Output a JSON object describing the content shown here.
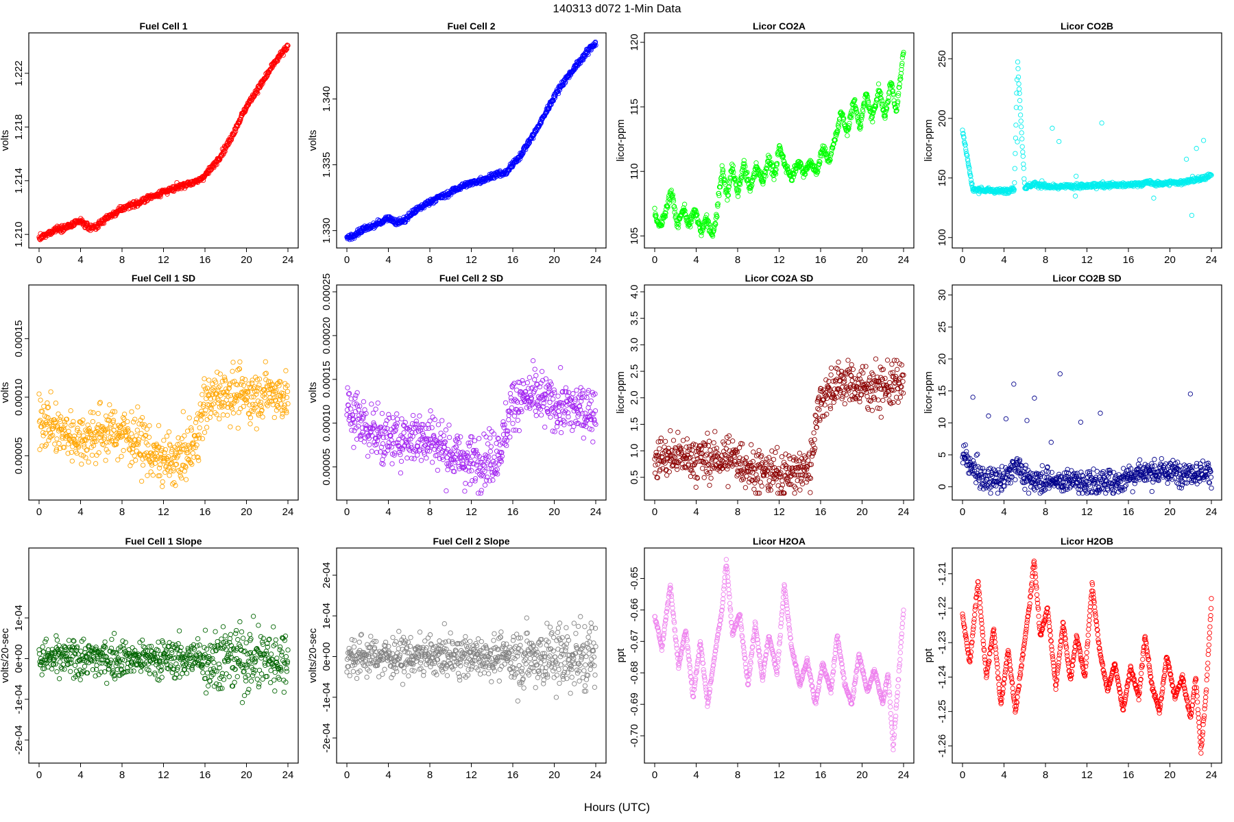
{
  "figure": {
    "title": "140313    d072    1-Min Data",
    "xlabel": "Hours (UTC)"
  },
  "chart_data": [
    {
      "type": "scatter",
      "title": "Fuel Cell 1",
      "xlabel": "",
      "ylabel": "volts",
      "color": "#ff0000",
      "xlim": [
        0,
        24
      ],
      "ylim": [
        1.2095,
        1.2245
      ],
      "xticks": [
        0,
        4,
        8,
        12,
        16,
        20,
        24
      ],
      "xtick_labels": [
        "0",
        "4",
        "8",
        "12",
        "16",
        "20",
        "24"
      ],
      "yticks": [
        1.21,
        1.214,
        1.218,
        1.222
      ],
      "ytick_labels": [
        "1.210",
        "1.214",
        "1.218",
        "1.222"
      ],
      "x": [
        0,
        0.8,
        1.6,
        2.4,
        3.2,
        4,
        4.8,
        5.6,
        6.4,
        7.2,
        8,
        8.8,
        9.6,
        10.4,
        11.2,
        12,
        12.8,
        13.6,
        14.4,
        15.2,
        16,
        16.8,
        17.6,
        18.4,
        19.2,
        20,
        20.8,
        21.6,
        22.4,
        23.2,
        24
      ],
      "y": [
        1.2097,
        1.21,
        1.2104,
        1.2105,
        1.2107,
        1.211,
        1.2105,
        1.2106,
        1.2112,
        1.2115,
        1.2119,
        1.2122,
        1.2123,
        1.2127,
        1.2129,
        1.2132,
        1.2133,
        1.2136,
        1.2138,
        1.2139,
        1.2144,
        1.2151,
        1.216,
        1.217,
        1.2183,
        1.2195,
        1.2205,
        1.2214,
        1.2224,
        1.2233,
        1.224
      ]
    },
    {
      "type": "scatter",
      "title": "Fuel Cell 2",
      "xlabel": "",
      "ylabel": "volts",
      "color": "#0000ff",
      "xlim": [
        0,
        24
      ],
      "ylim": [
        1.3292,
        1.3445
      ],
      "xticks": [
        0,
        4,
        8,
        12,
        16,
        20,
        24
      ],
      "xtick_labels": [
        "0",
        "4",
        "8",
        "12",
        "16",
        "20",
        "24"
      ],
      "yticks": [
        1.33,
        1.335,
        1.34
      ],
      "ytick_labels": [
        "1.330",
        "1.335",
        "1.340"
      ],
      "x": [
        0,
        0.8,
        1.6,
        2.4,
        3.2,
        4,
        4.8,
        5.6,
        6.4,
        7.2,
        8,
        8.8,
        9.6,
        10.4,
        11.2,
        12,
        12.8,
        13.6,
        14.4,
        15.2,
        16,
        16.8,
        17.6,
        18.4,
        19.2,
        20,
        20.8,
        21.6,
        22.4,
        23.2,
        24
      ],
      "y": [
        1.3294,
        1.3297,
        1.3301,
        1.3303,
        1.3306,
        1.331,
        1.3306,
        1.3308,
        1.3314,
        1.3318,
        1.3322,
        1.3325,
        1.3327,
        1.3331,
        1.3334,
        1.3336,
        1.3338,
        1.334,
        1.3343,
        1.3343,
        1.335,
        1.3358,
        1.3368,
        1.3378,
        1.339,
        1.3402,
        1.3412,
        1.342,
        1.3428,
        1.3436,
        1.3443
      ]
    },
    {
      "type": "scatter",
      "title": "Licor CO2A",
      "xlabel": "",
      "ylabel": "licor-ppm",
      "color": "#00ff00",
      "xlim": [
        0,
        24
      ],
      "ylim": [
        104.6,
        120.2
      ],
      "xticks": [
        0,
        4,
        8,
        12,
        16,
        20,
        24
      ],
      "xtick_labels": [
        "0",
        "4",
        "8",
        "12",
        "16",
        "20",
        "24"
      ],
      "yticks": [
        105,
        110,
        115,
        120
      ],
      "ytick_labels": [
        "105",
        "110",
        "115",
        "120"
      ],
      "x": [
        0,
        0.5,
        1,
        1.6,
        2.2,
        2.8,
        3.3,
        3.9,
        4.5,
        5,
        5.6,
        6,
        6.5,
        7,
        7.5,
        8,
        8.6,
        9.2,
        9.8,
        10.4,
        11,
        11.6,
        12,
        12.6,
        13.2,
        13.8,
        14.4,
        15,
        15.6,
        16.2,
        16.8,
        17.4,
        18,
        18.6,
        19.2,
        19.8,
        20.4,
        21,
        21.6,
        22.2,
        22.8,
        23.3,
        24
      ],
      "y": [
        106.8,
        105.6,
        106.8,
        108.5,
        105.8,
        107.2,
        105.8,
        107.0,
        105.2,
        106.4,
        104.9,
        106.8,
        110.2,
        108.0,
        110.5,
        108.2,
        110.6,
        108.5,
        110.5,
        109.2,
        111.0,
        109.5,
        111.9,
        110.5,
        109.5,
        110.8,
        109.8,
        110.8,
        109.9,
        111.8,
        110.8,
        112.5,
        114.6,
        113.0,
        115.5,
        113.5,
        116.0,
        114.0,
        116.5,
        114.2,
        117.0,
        114.5,
        119.5
      ]
    },
    {
      "type": "scatter",
      "title": "Licor CO2B",
      "xlabel": "",
      "ylabel": "licor-ppm",
      "color": "#00eeee",
      "xlim": [
        0,
        24
      ],
      "ylim": [
        97,
        266
      ],
      "xticks": [
        0,
        4,
        8,
        12,
        16,
        20,
        24
      ],
      "xtick_labels": [
        "0",
        "4",
        "8",
        "12",
        "16",
        "20",
        "24"
      ],
      "yticks": [
        100,
        150,
        200,
        250
      ],
      "ytick_labels": [
        "100",
        "150",
        "200",
        "250"
      ],
      "x": [
        0,
        1,
        2,
        3,
        4,
        5,
        5.3,
        6,
        7,
        8,
        9,
        10,
        11,
        12,
        13,
        14,
        15,
        16,
        17,
        18,
        19,
        20,
        21,
        22,
        23,
        24
      ],
      "y": [
        190,
        140,
        140,
        139,
        139,
        141,
        250,
        142,
        145,
        143,
        142,
        143,
        143,
        143,
        144,
        144,
        144,
        144,
        145,
        146,
        145,
        146,
        146,
        148,
        149,
        152
      ]
    },
    {
      "type": "scatter",
      "title": "Fuel Cell 1 SD",
      "xlabel": "",
      "ylabel": "volts",
      "color": "#ffa500",
      "xlim": [
        0,
        24
      ],
      "ylim": [
        1.8e-05,
        0.00019
      ],
      "xticks": [
        0,
        4,
        8,
        12,
        16,
        20,
        24
      ],
      "xtick_labels": [
        "0",
        "4",
        "8",
        "12",
        "16",
        "20",
        "24"
      ],
      "yticks": [
        5e-05,
        0.0001,
        0.00015
      ],
      "ytick_labels": [
        "0.00005",
        "0.00010",
        "0.00015"
      ],
      "x": [
        0,
        2,
        4,
        6,
        8,
        10,
        11,
        12,
        13,
        14,
        15,
        16,
        18,
        20,
        22,
        24
      ],
      "y": [
        8.5e-05,
        7e-05,
        6.5e-05,
        7e-05,
        7e-05,
        6e-05,
        5e-05,
        4.5e-05,
        4.5e-05,
        5e-05,
        6e-05,
        9.5e-05,
        0.000105,
        0.0001,
        0.000105,
        0.0001
      ]
    },
    {
      "type": "scatter",
      "title": "Fuel Cell 2 SD",
      "xlabel": "",
      "ylabel": "volts",
      "color": "#a020f0",
      "xlim": [
        0,
        24
      ],
      "ylim": [
        2e-05,
        0.00025
      ],
      "xticks": [
        0,
        4,
        8,
        12,
        16,
        20,
        24
      ],
      "xtick_labels": [
        "0",
        "4",
        "8",
        "12",
        "16",
        "20",
        "24"
      ],
      "yticks": [
        5e-05,
        0.0001,
        0.00015,
        0.0002,
        0.00025
      ],
      "ytick_labels": [
        "0.00005",
        "0.00010",
        "0.00015",
        "0.00020",
        "0.00025"
      ],
      "x": [
        0,
        2,
        4,
        6,
        8,
        10,
        11,
        12,
        13,
        14,
        15,
        16,
        18,
        20,
        22,
        24
      ],
      "y": [
        0.000115,
        9.5e-05,
        8e-05,
        8.5e-05,
        8.5e-05,
        6.5e-05,
        6e-05,
        5.5e-05,
        6e-05,
        6e-05,
        7.5e-05,
        0.000125,
        0.00013,
        0.00012,
        0.000115,
        0.000115
      ]
    },
    {
      "type": "scatter",
      "title": "Licor CO2A SD",
      "xlabel": "",
      "ylabel": "licor-ppm",
      "color": "#8b0000",
      "xlim": [
        0,
        24
      ],
      "ylim": [
        0.2,
        4.0
      ],
      "xticks": [
        0,
        4,
        8,
        12,
        16,
        20,
        24
      ],
      "xtick_labels": [
        "0",
        "4",
        "8",
        "12",
        "16",
        "20",
        "24"
      ],
      "yticks": [
        0.5,
        1.0,
        1.5,
        2.0,
        2.5,
        3.0,
        3.5,
        4.0
      ],
      "ytick_labels": [
        "0.5",
        "1.0",
        "1.5",
        "2.0",
        "2.5",
        "3.0",
        "3.5",
        "4.0"
      ],
      "x": [
        0,
        2,
        4,
        6,
        8,
        9,
        10,
        12,
        14,
        15,
        15.5,
        16,
        18,
        20,
        22,
        24
      ],
      "y": [
        0.85,
        0.9,
        0.85,
        0.85,
        0.85,
        0.7,
        0.6,
        0.55,
        0.6,
        0.7,
        1.5,
        2.0,
        2.3,
        2.2,
        2.2,
        2.3
      ]
    },
    {
      "type": "scatter",
      "title": "Licor CO2B SD",
      "xlabel": "",
      "ylabel": "licor-ppm",
      "color": "#00008b",
      "xlim": [
        0,
        24
      ],
      "ylim": [
        -1,
        30.5
      ],
      "xticks": [
        0,
        4,
        8,
        12,
        16,
        20,
        24
      ],
      "xtick_labels": [
        "0",
        "4",
        "8",
        "12",
        "16",
        "20",
        "24"
      ],
      "yticks": [
        0,
        5,
        10,
        15,
        20,
        25,
        30
      ],
      "ytick_labels": [
        "0",
        "5",
        "10",
        "15",
        "20",
        "25",
        "30"
      ],
      "x": [
        0,
        2,
        4,
        5.3,
        6,
        8,
        10,
        12,
        14,
        15.5,
        16,
        18,
        20,
        22,
        24
      ],
      "y": [
        5,
        1,
        1,
        4,
        1,
        1,
        0.8,
        0.7,
        0.8,
        1,
        2,
        2.2,
        2.3,
        2.3,
        2.3
      ]
    },
    {
      "type": "scatter",
      "title": "Fuel Cell 1 Slope",
      "xlabel": "",
      "ylabel": "volts/20-sec",
      "color": "#006400",
      "xlim": [
        0,
        24
      ],
      "ylim": [
        -0.00024,
        0.000255
      ],
      "xticks": [
        0,
        4,
        8,
        12,
        16,
        20,
        24
      ],
      "xtick_labels": [
        "0",
        "4",
        "8",
        "12",
        "16",
        "20",
        "24"
      ],
      "yticks": [
        -0.0002,
        -0.0001,
        0,
        0.0001
      ],
      "ytick_labels": [
        "-2e-04",
        "-1e-04",
        "0e+00",
        "1e-04"
      ],
      "x": [
        0,
        4,
        8,
        12,
        16,
        20,
        24
      ],
      "y": [
        0,
        0,
        0,
        0,
        0,
        0,
        0
      ]
    },
    {
      "type": "scatter",
      "title": "Fuel Cell 2 Slope",
      "xlabel": "",
      "ylabel": "volts/20-sec",
      "color": "#808080",
      "xlim": [
        0,
        24
      ],
      "ylim": [
        -0.000245,
        0.00025
      ],
      "xticks": [
        0,
        4,
        8,
        12,
        16,
        20,
        24
      ],
      "xtick_labels": [
        "0",
        "4",
        "8",
        "12",
        "16",
        "20",
        "24"
      ],
      "yticks": [
        -0.0002,
        -0.0001,
        0,
        0.0001,
        0.0002
      ],
      "ytick_labels": [
        "-2e-04",
        "-1e-04",
        "0e+00",
        "1e-04",
        "2e-04"
      ],
      "x": [
        0,
        4,
        8,
        12,
        16,
        20,
        24
      ],
      "y": [
        0,
        0,
        0,
        0,
        0,
        0,
        0
      ]
    },
    {
      "type": "scatter",
      "title": "Licor H2OA",
      "xlabel": "",
      "ylabel": "ppt",
      "color": "#ee82ee",
      "xlim": [
        0,
        24
      ],
      "ylim": [
        -0.7065,
        -0.6425
      ],
      "xticks": [
        0,
        4,
        8,
        12,
        16,
        20,
        24
      ],
      "xtick_labels": [
        "0",
        "4",
        "8",
        "12",
        "16",
        "20",
        "24"
      ],
      "yticks": [
        -0.7,
        -0.69,
        -0.68,
        -0.67,
        -0.66,
        -0.65
      ],
      "ytick_labels": [
        "-0.70",
        "-0.69",
        "-0.68",
        "-0.67",
        "-0.66",
        "-0.65"
      ],
      "x": [
        0,
        0.7,
        1.5,
        2.3,
        3,
        3.7,
        4.4,
        5.1,
        5.8,
        6.5,
        6.9,
        7.5,
        8.2,
        9,
        9.7,
        10.4,
        11,
        11.8,
        12.5,
        13.2,
        14,
        14.7,
        15.5,
        16.2,
        17,
        17.6,
        18.3,
        19,
        19.7,
        20.5,
        21.2,
        22,
        22.5,
        23,
        23.5,
        24
      ],
      "y": [
        -0.662,
        -0.672,
        -0.652,
        -0.678,
        -0.666,
        -0.688,
        -0.67,
        -0.69,
        -0.674,
        -0.66,
        -0.644,
        -0.668,
        -0.661,
        -0.684,
        -0.664,
        -0.682,
        -0.668,
        -0.68,
        -0.652,
        -0.672,
        -0.684,
        -0.676,
        -0.69,
        -0.677,
        -0.686,
        -0.668,
        -0.683,
        -0.69,
        -0.674,
        -0.686,
        -0.679,
        -0.69,
        -0.68,
        -0.704,
        -0.682,
        -0.66
      ]
    },
    {
      "type": "scatter",
      "title": "Licor H2OB",
      "xlabel": "",
      "ylabel": "ppt",
      "color": "#ff0000",
      "xlim": [
        0,
        24
      ],
      "ylim": [
        -1.263,
        -1.2045
      ],
      "xticks": [
        0,
        4,
        8,
        12,
        16,
        20,
        24
      ],
      "xtick_labels": [
        "0",
        "4",
        "8",
        "12",
        "16",
        "20",
        "24"
      ],
      "yticks": [
        -1.26,
        -1.25,
        -1.24,
        -1.23,
        -1.22,
        -1.21
      ],
      "ytick_labels": [
        "-1.26",
        "-1.25",
        "-1.24",
        "-1.23",
        "-1.22",
        "-1.21"
      ],
      "x": [
        0,
        0.7,
        1.5,
        2.3,
        3,
        3.7,
        4.4,
        5.1,
        5.8,
        6.5,
        6.9,
        7.5,
        8.2,
        9,
        9.7,
        10.4,
        11,
        11.8,
        12.5,
        13.2,
        14,
        14.7,
        15.5,
        16.2,
        17,
        17.6,
        18.3,
        19,
        19.7,
        20.5,
        21.2,
        22,
        22.5,
        23,
        23.5,
        24
      ],
      "y": [
        -1.222,
        -1.236,
        -1.212,
        -1.24,
        -1.226,
        -1.248,
        -1.232,
        -1.25,
        -1.234,
        -1.218,
        -1.206,
        -1.228,
        -1.22,
        -1.243,
        -1.224,
        -1.241,
        -1.228,
        -1.24,
        -1.213,
        -1.232,
        -1.244,
        -1.236,
        -1.25,
        -1.237,
        -1.246,
        -1.228,
        -1.243,
        -1.25,
        -1.234,
        -1.246,
        -1.24,
        -1.252,
        -1.24,
        -1.262,
        -1.244,
        -1.218
      ]
    }
  ]
}
